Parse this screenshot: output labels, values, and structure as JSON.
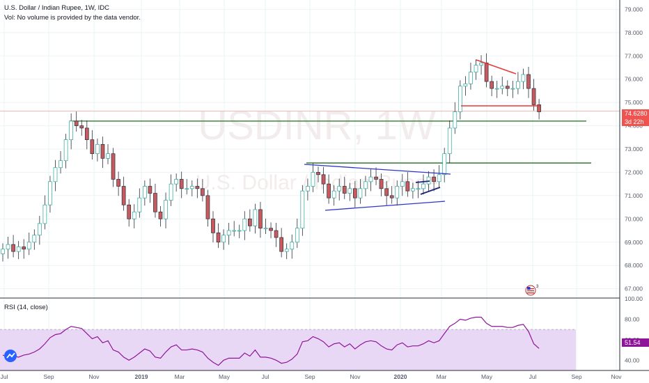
{
  "header": {
    "title": "U.S. Dollar / Indian Rupee, 1W, IDC",
    "volume_note": "Vol: No volume is provided by the data vendor."
  },
  "watermark": {
    "symbol": "USDINR, 1W",
    "description": "U.S. Dollar / Indian Rupee"
  },
  "rsi_panel": {
    "label": "RSI (14, close)",
    "value": "51.54",
    "upper_band": 70,
    "lower_band": 30
  },
  "price_tag": {
    "value": "74.6280",
    "countdown": "3d 22h"
  },
  "colors": {
    "up": "#26a69a",
    "down": "#c75a5f",
    "rsi_line": "#8e1599",
    "rsi_band": "#e9d8f5",
    "support_line": "#1f6e1f",
    "triangle_line": "#2e35c8",
    "red_line": "#e53935",
    "bg": "#ffffff"
  },
  "chart_data": {
    "type": "candlestick",
    "y_axis": {
      "ylim": [
        66.6,
        79.4
      ],
      "ticks": [
        "79.000",
        "78.000",
        "77.000",
        "76.000",
        "75.000",
        "74.000",
        "73.000",
        "72.000",
        "71.000",
        "70.000",
        "69.000",
        "68.000",
        "67.000"
      ]
    },
    "rsi_axis": {
      "ylim": [
        30,
        100
      ],
      "ticks": [
        "100.00",
        "80.00",
        "60.00",
        "40.00"
      ]
    },
    "x_axis": {
      "labels": [
        "Jul",
        "Sep",
        "Nov",
        "2019",
        "Mar",
        "May",
        "Jul",
        "Sep",
        "Nov",
        "2020",
        "Mar",
        "May",
        "Jul",
        "Sep",
        "Nov"
      ]
    },
    "close": [
      68.7,
      68.9,
      68.6,
      68.8,
      68.7,
      69.0,
      69.3,
      69.8,
      70.6,
      71.6,
      72.2,
      72.5,
      73.4,
      74.2,
      74.0,
      73.9,
      73.4,
      72.8,
      73.2,
      72.6,
      72.8,
      71.7,
      71.4,
      70.6,
      70.0,
      70.3,
      70.9,
      71.4,
      71.1,
      70.3,
      70.0,
      70.8,
      71.5,
      71.7,
      71.3,
      71.3,
      71.4,
      71.3,
      71.0,
      70.0,
      69.4,
      69.0,
      69.3,
      69.5,
      69.5,
      69.5,
      70.0,
      69.7,
      70.4,
      69.6,
      69.6,
      69.5,
      69.2,
      68.6,
      68.7,
      69.0,
      69.6,
      71.2,
      71.4,
      72.0,
      71.9,
      71.5,
      70.9,
      71.2,
      71.4,
      71.1,
      71.3,
      70.9,
      71.3,
      71.6,
      71.8,
      71.7,
      71.3,
      71.0,
      70.9,
      71.4,
      71.6,
      71.2,
      71.3,
      71.3,
      71.5,
      71.8,
      71.6,
      71.9,
      72.8,
      73.9,
      74.6,
      75.7,
      75.8,
      76.3,
      76.6,
      76.7,
      75.9,
      75.6,
      75.6,
      75.7,
      75.6,
      75.6,
      75.9,
      76.2,
      75.6,
      74.9,
      74.6
    ],
    "annotations": [
      {
        "name": "support-upper",
        "y": 74.2
      },
      {
        "name": "support-lower",
        "y": 72.4
      },
      {
        "name": "current-price-line",
        "y": 74.628
      }
    ],
    "rsi": [
      45,
      43,
      44,
      43,
      45,
      46,
      48,
      51,
      56,
      62,
      65,
      66,
      70,
      73,
      72,
      71,
      66,
      61,
      63,
      57,
      59,
      50,
      48,
      43,
      40,
      43,
      47,
      51,
      49,
      43,
      42,
      48,
      53,
      55,
      50,
      50,
      51,
      50,
      48,
      42,
      38,
      35,
      40,
      42,
      42,
      42,
      47,
      44,
      50,
      43,
      43,
      42,
      40,
      37,
      38,
      41,
      46,
      58,
      59,
      63,
      61,
      58,
      53,
      56,
      57,
      53,
      56,
      51,
      55,
      58,
      59,
      58,
      54,
      51,
      50,
      55,
      57,
      53,
      54,
      54,
      56,
      59,
      57,
      59,
      66,
      73,
      76,
      80,
      79,
      81,
      82,
      82,
      76,
      73,
      73,
      73,
      72,
      72,
      74,
      75,
      68,
      56,
      51.54
    ]
  }
}
